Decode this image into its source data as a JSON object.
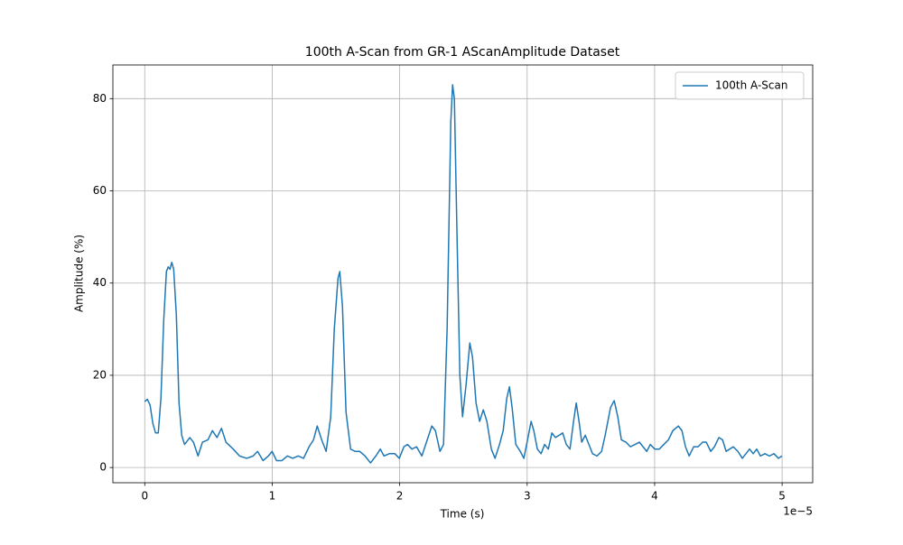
{
  "chart_data": {
    "type": "line",
    "title": "100th A-Scan from GR-1 AScanAmplitude Dataset",
    "x_label": "Time (s)",
    "y_label": "Amplitude (%)",
    "x_offset_label": "1e−5",
    "x": [
      0,
      2.1e-07,
      4.2e-07,
      6.4e-07,
      8.5e-07,
      1.06e-06,
      1.27e-06,
      1.49e-06,
      1.7e-06,
      1.84e-06,
      1.98e-06,
      2.12e-06,
      2.27e-06,
      2.48e-06,
      2.69e-06,
      2.9e-06,
      3.12e-06,
      3.54e-06,
      3.82e-06,
      4.18e-06,
      4.53e-06,
      4.96e-06,
      5.31e-06,
      5.67e-06,
      6.02e-06,
      6.37e-06,
      6.94e-06,
      7.44e-06,
      8e-06,
      8.5e-06,
      8.85e-06,
      9.28e-06,
      9.7e-06,
      9.99e-06,
      1.034e-05,
      1.076e-05,
      1.119e-05,
      1.161e-05,
      1.204e-05,
      1.246e-05,
      1.289e-05,
      1.324e-05,
      1.353e-05,
      1.388e-05,
      1.423e-05,
      1.459e-05,
      1.487e-05,
      1.516e-05,
      1.53e-05,
      1.551e-05,
      1.579e-05,
      1.615e-05,
      1.65e-05,
      1.686e-05,
      1.728e-05,
      1.771e-05,
      1.813e-05,
      1.848e-05,
      1.877e-05,
      1.919e-05,
      1.962e-05,
      1.997e-05,
      2.033e-05,
      2.061e-05,
      2.096e-05,
      2.132e-05,
      2.174e-05,
      2.21e-05,
      2.252e-05,
      2.28e-05,
      2.316e-05,
      2.344e-05,
      2.372e-05,
      2.401e-05,
      2.415e-05,
      2.429e-05,
      2.45e-05,
      2.472e-05,
      2.493e-05,
      2.521e-05,
      2.55e-05,
      2.571e-05,
      2.599e-05,
      2.627e-05,
      2.656e-05,
      2.684e-05,
      2.719e-05,
      2.748e-05,
      2.783e-05,
      2.812e-05,
      2.84e-05,
      2.861e-05,
      2.882e-05,
      2.911e-05,
      2.946e-05,
      2.974e-05,
      3.003e-05,
      3.031e-05,
      3.052e-05,
      3.08e-05,
      3.109e-05,
      3.137e-05,
      3.166e-05,
      3.194e-05,
      3.222e-05,
      3.251e-05,
      3.279e-05,
      3.307e-05,
      3.336e-05,
      3.364e-05,
      3.385e-05,
      3.407e-05,
      3.428e-05,
      3.456e-05,
      3.477e-05,
      3.513e-05,
      3.548e-05,
      3.584e-05,
      3.612e-05,
      3.654e-05,
      3.683e-05,
      3.711e-05,
      3.739e-05,
      3.775e-05,
      3.81e-05,
      3.846e-05,
      3.881e-05,
      3.909e-05,
      3.938e-05,
      3.966e-05,
      4.001e-05,
      4.037e-05,
      4.072e-05,
      4.108e-05,
      4.143e-05,
      4.186e-05,
      4.214e-05,
      4.242e-05,
      4.271e-05,
      4.306e-05,
      4.341e-05,
      4.377e-05,
      4.405e-05,
      4.44e-05,
      4.469e-05,
      4.504e-05,
      4.533e-05,
      4.561e-05,
      4.589e-05,
      4.617e-05,
      4.653e-05,
      4.688e-05,
      4.716e-05,
      4.745e-05,
      4.773e-05,
      4.801e-05,
      4.83e-05,
      4.865e-05,
      4.9e-05,
      4.936e-05,
      4.971e-05,
      5e-05
    ],
    "series": [
      {
        "name": "100th A-Scan",
        "color": "#1f77b4",
        "values": [
          14.3,
          14.8,
          13.5,
          9.5,
          7.5,
          7.5,
          15,
          32,
          42.5,
          43.5,
          43,
          44.5,
          43,
          33,
          14,
          7,
          5,
          6.5,
          5.5,
          2.5,
          5.5,
          6,
          8,
          6.5,
          8.5,
          5.5,
          4,
          2.5,
          2,
          2.5,
          3.5,
          1.5,
          2.5,
          3.5,
          1.5,
          1.5,
          2.5,
          2,
          2.5,
          2,
          4.5,
          6,
          9,
          6,
          3.5,
          11,
          30,
          41,
          42.5,
          35,
          12,
          4,
          3.5,
          3.5,
          2.5,
          1,
          2.5,
          4,
          2.5,
          3,
          3,
          2,
          4.5,
          5,
          4,
          4.5,
          2.5,
          5.5,
          9,
          8,
          3.5,
          5,
          30,
          75,
          83,
          80,
          50,
          20,
          11,
          18,
          27,
          24,
          14,
          10,
          12.5,
          10,
          4,
          2,
          5,
          8,
          15,
          17.5,
          13,
          5,
          3.5,
          2,
          6,
          10,
          8,
          4,
          3,
          5,
          4,
          7.5,
          6.5,
          7,
          7.5,
          5,
          4,
          10,
          14,
          10,
          5.5,
          7,
          5.5,
          3,
          2.5,
          3.5,
          7,
          13,
          14.5,
          11,
          6,
          5.5,
          4.5,
          5,
          5.5,
          4.5,
          3.5,
          5,
          4,
          4,
          5,
          6,
          8,
          9,
          8,
          4.5,
          2.5,
          4.5,
          4.5,
          5.5,
          5.5,
          3.5,
          4.5,
          6.5,
          6,
          3.5,
          4,
          4.5,
          3.5,
          2,
          3,
          4,
          3,
          4,
          2.5,
          3,
          2.5,
          3,
          2,
          2.5
        ]
      }
    ],
    "xlim": [
      -2.5e-06,
      5.24e-05
    ],
    "ylim": [
      -3.3,
      87.3
    ],
    "xticks": [
      0,
      {
        "value": 1e-05,
        "label": "1"
      },
      {
        "value": 2e-05,
        "label": "2"
      },
      {
        "value": 3e-05,
        "label": "3"
      },
      {
        "value": 4e-05,
        "label": "4"
      },
      {
        "value": 5e-05,
        "label": "5"
      }
    ],
    "yticks": [
      0,
      20,
      40,
      60,
      80
    ],
    "grid": true,
    "legend": "upper right"
  }
}
